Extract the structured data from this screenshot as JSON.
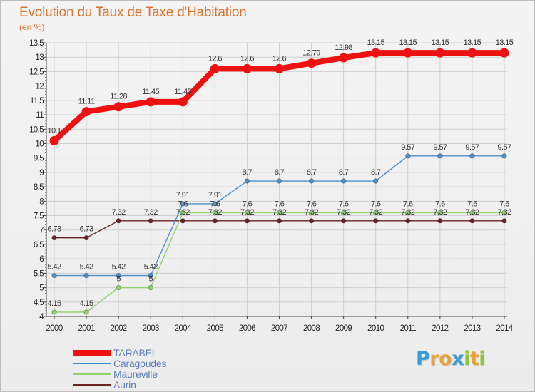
{
  "title": "Evolution du Taux de Taxe d'Habitation",
  "subtitle": "(en %)",
  "colors": {
    "title": "#e0712a",
    "background": "#eeeeee",
    "grid": "#d0d0d0",
    "axis": "#444444",
    "axis_red_ticks": "#cc0000"
  },
  "logo": {
    "letters": [
      "P",
      "r",
      "o",
      "x",
      "i",
      "t",
      "i"
    ],
    "colors": [
      "#3b9cd6",
      "#e8a23b",
      "#e8a23b",
      "#3b9cd6",
      "#8cc63f",
      "#e8a23b",
      "#8cc63f"
    ]
  },
  "chart_data": {
    "type": "line",
    "x": [
      "2000",
      "2001",
      "2002",
      "2003",
      "2004",
      "2005",
      "2006",
      "2007",
      "2008",
      "2009",
      "2010",
      "2011",
      "2012",
      "2013",
      "2014"
    ],
    "yticks": [
      "4",
      "4.5",
      "5",
      "5.5",
      "6",
      "6.5",
      "7",
      "7.5",
      "8",
      "8.5",
      "9",
      "9.5",
      "10",
      "10.5",
      "11",
      "11.5",
      "12",
      "12.5",
      "13",
      "13.5"
    ],
    "ylim": [
      4,
      13.5
    ],
    "grid": true,
    "legend_position": "bottom-left",
    "series": [
      {
        "name": "TARABEL",
        "color": "#ee1111",
        "values": [
          10.1,
          11.11,
          11.28,
          11.45,
          11.45,
          12.6,
          12.6,
          12.6,
          12.79,
          12.98,
          13.15,
          13.15,
          13.15,
          13.15,
          13.15
        ],
        "labels": [
          "10.1",
          "11.11",
          "11.28",
          "11.45",
          "11.45",
          "12.6",
          "12.6",
          "12.6",
          "12.79",
          "12.98",
          "13.15",
          "13.15",
          "13.15",
          "13.15",
          "13.15"
        ]
      },
      {
        "name": "Caragoudes",
        "color": "#4a8fcc",
        "values": [
          5.42,
          5.42,
          5.42,
          5.42,
          7.91,
          7.91,
          8.7,
          8.7,
          8.7,
          8.7,
          8.7,
          9.57,
          9.57,
          9.57,
          9.57
        ],
        "labels": [
          "5.42",
          "5.42",
          "5.42",
          "5.42",
          "7.91",
          "7.91",
          "8.7",
          "8.7",
          "8.7",
          "8.7",
          "8.7",
          "9.57",
          "9.57",
          "9.57",
          "9.57"
        ]
      },
      {
        "name": "Maureville",
        "color": "#8fd06a",
        "values": [
          4.15,
          4.15,
          5,
          5,
          7.6,
          7.6,
          7.6,
          7.6,
          7.6,
          7.6,
          7.6,
          7.6,
          7.6,
          7.6,
          7.6
        ],
        "labels": [
          "4.15",
          "4.15",
          "5",
          "5",
          "7.6",
          "7.6",
          "7.6",
          "7.6",
          "7.6",
          "7.6",
          "7.6",
          "7.6",
          "7.6",
          "7.6",
          "7.6"
        ]
      },
      {
        "name": "Aurin",
        "color": "#6b2222",
        "values": [
          6.73,
          6.73,
          7.32,
          7.32,
          7.32,
          7.32,
          7.32,
          7.32,
          7.32,
          7.32,
          7.32,
          7.32,
          7.32,
          7.32,
          7.32
        ],
        "labels": [
          "6.73",
          "6.73",
          "7.32",
          "7.32",
          "7.32",
          "7.32",
          "7.32",
          "7.32",
          "7.32",
          "7.32",
          "7.32",
          "7.32",
          "7.32",
          "7.32",
          "7.32"
        ]
      }
    ]
  }
}
